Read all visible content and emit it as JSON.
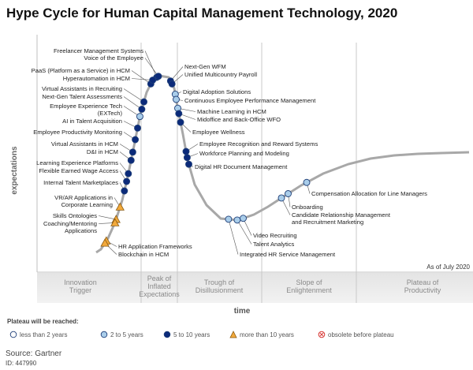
{
  "title": "Hype Cycle for Human Capital Management Technology, 2020",
  "source": "Source: Gartner",
  "doc_id": "ID: 447990",
  "as_of": "As of July 2020",
  "colors": {
    "less_than_2": "#ffffff",
    "two_to_5": "#a9cdea",
    "five_to_10": "#0b2a7a",
    "more_than_10": "#f2a93b",
    "obsolete": "#d6332f",
    "curve": "#a8a8a8",
    "marker_stroke": "#1f3f78"
  },
  "chart_data": {
    "type": "scatter",
    "title": "Hype Cycle for Human Capital Management Technology, 2020",
    "xlabel": "time",
    "ylabel": "expectations",
    "phases": [
      "Innovation Trigger",
      "Peak of Inflated Expectations",
      "Trough of Disillusionment",
      "Slope of Enlightenment",
      "Plateau of Productivity"
    ],
    "legend_title": "Plateau will be reached:",
    "legend": [
      {
        "key": "less_than_2",
        "label": "less than 2 years",
        "shape": "circle"
      },
      {
        "key": "two_to_5",
        "label": "2 to 5 years",
        "shape": "circle"
      },
      {
        "key": "five_to_10",
        "label": "5 to 10 years",
        "shape": "circle"
      },
      {
        "key": "more_than_10",
        "label": "more than 10 years",
        "shape": "triangle"
      },
      {
        "key": "obsolete",
        "label": "obsolete before plateau",
        "shape": "x-circle"
      }
    ],
    "points": [
      {
        "label": "Freelancer Management Systems",
        "t": 0.368,
        "category": "five_to_10",
        "side": "left"
      },
      {
        "label": "Voice of the Employee",
        "t": 0.376,
        "category": "five_to_10",
        "side": "left"
      },
      {
        "label": "PaaS (Platform as a Service) in HCM",
        "t": 0.34,
        "category": "five_to_10",
        "side": "left"
      },
      {
        "label": "Hyperautomation in HCM",
        "t": 0.349,
        "category": "five_to_10",
        "side": "left"
      },
      {
        "label": "Virtual Assistants in Recruiting",
        "t": 0.307,
        "category": "five_to_10",
        "side": "left"
      },
      {
        "label": "Next-Gen Talent Assessments",
        "t": 0.297,
        "category": "five_to_10",
        "side": "left"
      },
      {
        "label": "Employee Experience Tech (EXTech)",
        "t": 0.288,
        "category": "two_to_5",
        "side": "left"
      },
      {
        "label": "AI in Talent Acquisition",
        "t": 0.277,
        "category": "five_to_10",
        "side": "left"
      },
      {
        "label": "Employee Productivity Monitoring",
        "t": 0.266,
        "category": "five_to_10",
        "side": "left"
      },
      {
        "label": "Virtual Assistants in HCM",
        "t": 0.254,
        "category": "five_to_10",
        "side": "left"
      },
      {
        "label": "D&I in HCM",
        "t": 0.246,
        "category": "five_to_10",
        "side": "left"
      },
      {
        "label": "Learning Experience Platforms",
        "t": 0.233,
        "category": "five_to_10",
        "side": "left"
      },
      {
        "label": "Flexible Earned Wage Access",
        "t": 0.224,
        "category": "five_to_10",
        "side": "left"
      },
      {
        "label": "Internal Talent Marketplaces",
        "t": 0.212,
        "category": "five_to_10",
        "side": "left"
      },
      {
        "label": "VR/AR Applications in Corporate Learning",
        "t": 0.185,
        "category": "more_than_10",
        "side": "right"
      },
      {
        "label": "Skills Ontologies",
        "t": 0.157,
        "category": "more_than_10",
        "side": "left"
      },
      {
        "label": "Coaching/Mentoring Applications",
        "t": 0.149,
        "category": "more_than_10",
        "side": "left"
      },
      {
        "label": "HR Application Frameworks",
        "t": 0.088,
        "category": "more_than_10",
        "side": "right"
      },
      {
        "label": "Blockchain in HCM",
        "t": 0.078,
        "category": "more_than_10",
        "side": "right"
      },
      {
        "label": "Next-Gen WFM",
        "t": 0.42,
        "category": "five_to_10",
        "side": "right"
      },
      {
        "label": "Unified Multicountry Payroll",
        "t": 0.428,
        "category": "five_to_10",
        "side": "right"
      },
      {
        "label": "Digital Adoption Solutions",
        "t": 0.448,
        "category": "two_to_5",
        "side": "right"
      },
      {
        "label": "Continuous Employee Performance Management",
        "t": 0.455,
        "category": "two_to_5",
        "side": "right"
      },
      {
        "label": "Machine Learning in HCM",
        "t": 0.467,
        "category": "two_to_5",
        "side": "right"
      },
      {
        "label": "Midoffice and Back-Office WFO",
        "t": 0.474,
        "category": "five_to_10",
        "side": "right"
      },
      {
        "label": "Employee Wellness",
        "t": 0.485,
        "category": "five_to_10",
        "side": "right"
      },
      {
        "label": "Employee Recognition and Reward Systems",
        "t": 0.52,
        "category": "five_to_10",
        "side": "right"
      },
      {
        "label": "Workforce Planning and Modeling",
        "t": 0.527,
        "category": "five_to_10",
        "side": "right"
      },
      {
        "label": "Digital HR Document Management",
        "t": 0.535,
        "category": "five_to_10",
        "side": "right"
      },
      {
        "label": "Integrated HR Service Management",
        "t": 0.658,
        "category": "two_to_5",
        "side": "below"
      },
      {
        "label": "Talent Analytics",
        "t": 0.678,
        "category": "two_to_5",
        "side": "right"
      },
      {
        "label": "Video Recruiting",
        "t": 0.693,
        "category": "two_to_5",
        "side": "right"
      },
      {
        "label": "Candidate Relationship Management and Recruitment Marketing",
        "t": 0.794,
        "category": "two_to_5",
        "side": "right"
      },
      {
        "label": "Onboarding",
        "t": 0.81,
        "category": "two_to_5",
        "side": "right"
      },
      {
        "label": "Compensation Allocation for Line Managers",
        "t": 0.85,
        "category": "two_to_5",
        "side": "right"
      }
    ]
  }
}
